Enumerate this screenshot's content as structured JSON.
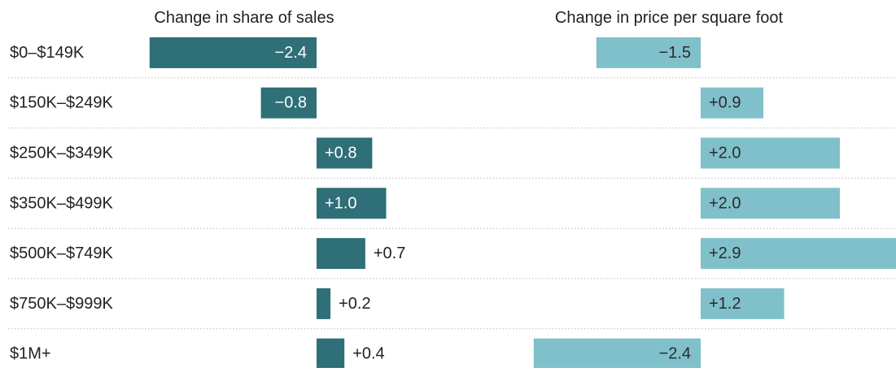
{
  "chart_data": {
    "type": "bar",
    "orientation": "horizontal",
    "categories": [
      "$0–$149K",
      "$150K–$249K",
      "$250K–$349K",
      "$350K–$499K",
      "$500K–$749K",
      "$750K–$999K",
      "$1M+"
    ],
    "series": [
      {
        "name": "Change in share of sales",
        "color": "#2e6f78",
        "values": [
          -2.4,
          -0.8,
          0.8,
          1.0,
          0.7,
          0.2,
          0.4
        ],
        "value_labels": [
          "−2.4",
          "−0.8",
          "+0.8",
          "+1.0",
          "+0.7",
          "+0.2",
          "+0.4"
        ]
      },
      {
        "name": "Change in price per square foot",
        "color": "#80c0ca",
        "values": [
          -1.5,
          0.9,
          2.0,
          2.0,
          2.9,
          1.2,
          -2.4
        ],
        "value_labels": [
          "−1.5",
          "+0.9",
          "+2.0",
          "+2.0",
          "+2.9",
          "+1.2",
          "−2.4"
        ]
      }
    ]
  }
}
